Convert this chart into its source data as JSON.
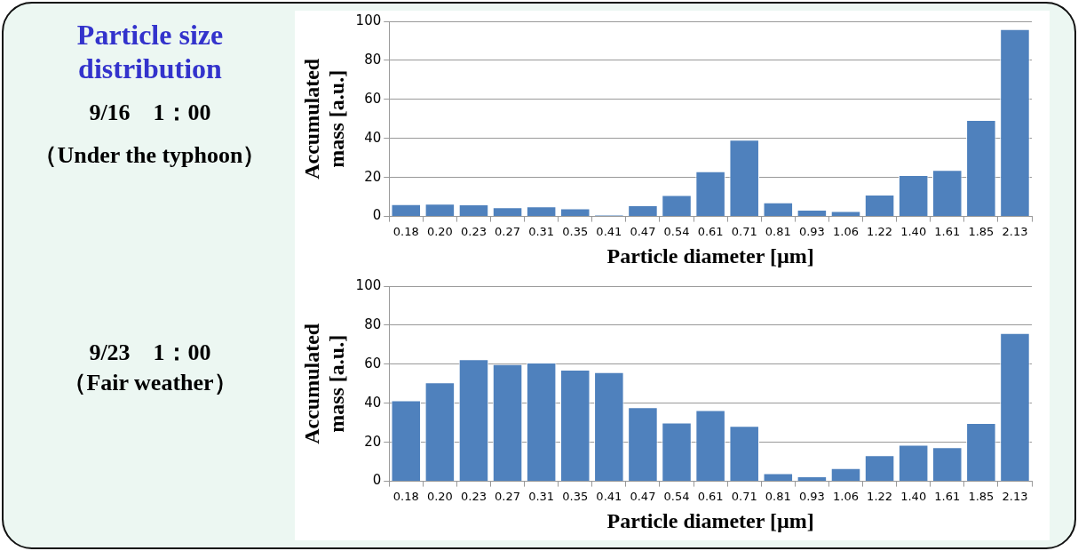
{
  "chart_data": [
    {
      "type": "bar",
      "title": "Particle size distribution",
      "annotations": [
        "9/16　1：00",
        "（Under the typhoon）"
      ],
      "xlabel": "Particle diameter [µm]",
      "ylabel": "Accumulated mass [a.u.]",
      "categories": [
        "0.18",
        "0.20",
        "0.23",
        "0.27",
        "0.31",
        "0.35",
        "0.41",
        "0.47",
        "0.54",
        "0.61",
        "0.71",
        "0.81",
        "0.93",
        "1.06",
        "1.22",
        "1.40",
        "1.61",
        "1.85",
        "2.13"
      ],
      "values": [
        6.3,
        6.5,
        6.2,
        4.7,
        5.2,
        4.2,
        0.7,
        5.7,
        11,
        23.2,
        39.3,
        7.2,
        3.5,
        2.8,
        11.2,
        21.2,
        23.8,
        49.5,
        96
      ],
      "color": "#4f81bd",
      "ylim": [
        0,
        100
      ],
      "yticks": [
        0,
        20,
        40,
        60,
        80,
        100
      ],
      "grid": "y"
    },
    {
      "type": "bar",
      "annotations": [
        "9/23　1：00",
        "（Fair weather）"
      ],
      "xlabel": "Particle diameter [µm]",
      "ylabel": "Accumulated mass [a.u.]",
      "categories": [
        "0.18",
        "0.20",
        "0.23",
        "0.27",
        "0.31",
        "0.35",
        "0.41",
        "0.47",
        "0.54",
        "0.61",
        "0.71",
        "0.81",
        "0.93",
        "1.06",
        "1.22",
        "1.40",
        "1.61",
        "1.85",
        "2.13"
      ],
      "values": [
        41.5,
        50.7,
        62.6,
        60,
        60.8,
        57.2,
        55.9,
        37.9,
        30.1,
        36.5,
        28.4,
        4.1,
        2.6,
        6.8,
        13.4,
        18.7,
        17.5,
        29.9,
        76
      ],
      "color": "#4f81bd",
      "ylim": [
        0,
        100
      ],
      "yticks": [
        0,
        20,
        40,
        60,
        80,
        100
      ],
      "grid": "y"
    }
  ]
}
